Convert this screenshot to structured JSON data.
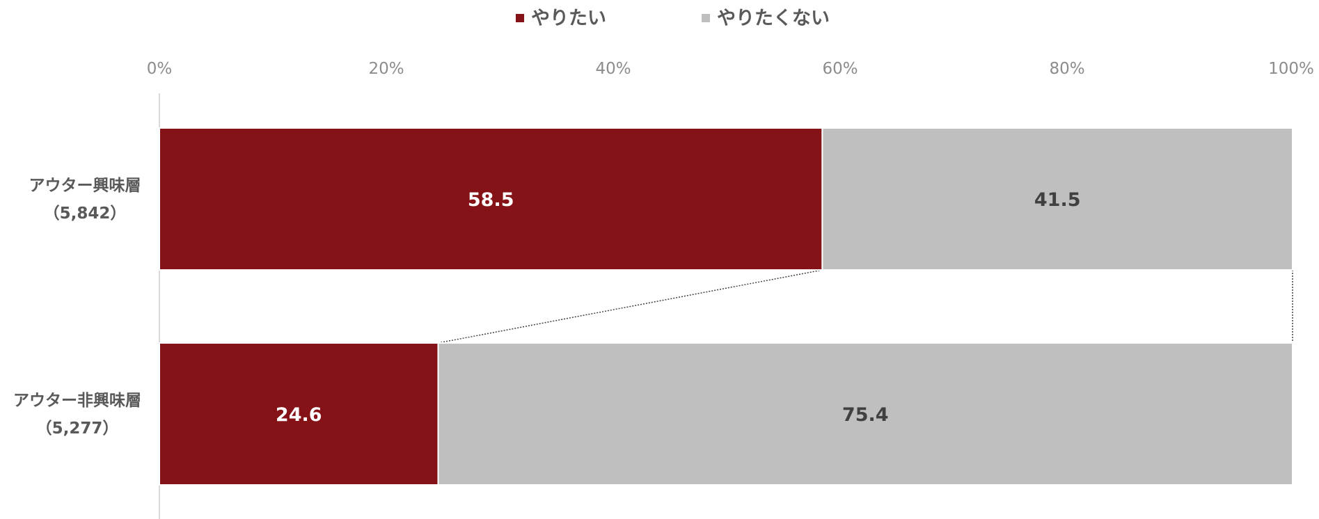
{
  "chart_data": {
    "type": "bar",
    "orientation": "horizontal",
    "stacked": "percent",
    "categories": [
      {
        "name": "アウター興味層",
        "n": "（5,842）"
      },
      {
        "name": "アウター非興味層",
        "n": "（5,277）"
      }
    ],
    "series": [
      {
        "name": "やりたい",
        "values": [
          58.5,
          24.6
        ],
        "color": "#841217",
        "label_color": "#ffffff"
      },
      {
        "name": "やりたくない",
        "values": [
          41.5,
          75.4
        ],
        "color": "#bfbfbf",
        "label_color": "#404040"
      }
    ],
    "value_labels": [
      [
        "58.5",
        "24.6"
      ],
      [
        "41.5",
        "75.4"
      ]
    ],
    "x_ticks": [
      "0%",
      "20%",
      "40%",
      "60%",
      "80%",
      "100%"
    ],
    "xlim": [
      0,
      100
    ],
    "legend_position": "top-center",
    "grid": false,
    "series_lines": "dotted"
  }
}
